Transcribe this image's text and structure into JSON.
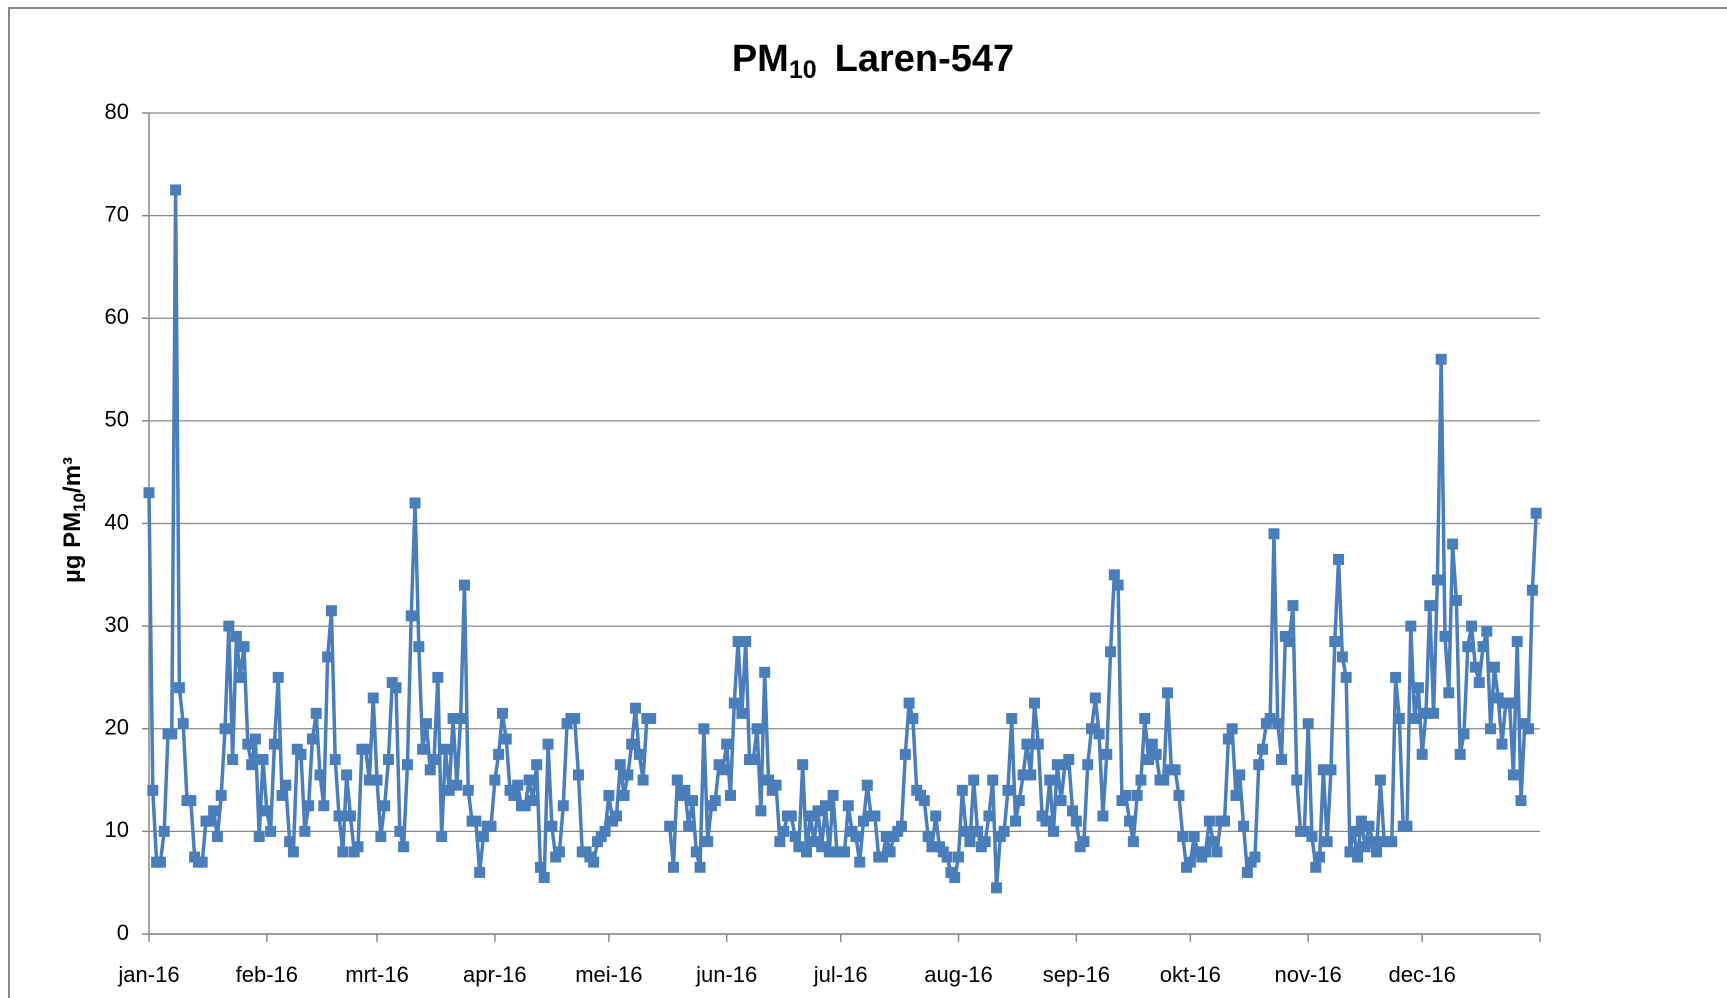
{
  "chart_data": {
    "type": "line",
    "title": [
      "PM",
      "10",
      "Laren-547"
    ],
    "y_label": [
      "µg PM",
      "10",
      "/m³"
    ],
    "color": "#4a7ebb",
    "grid": true,
    "ylim": [
      0,
      80
    ],
    "yticks": [
      0,
      10,
      20,
      30,
      40,
      50,
      60,
      70,
      80
    ],
    "categories": [
      "jan-16",
      null,
      null,
      null,
      null,
      null,
      null,
      null,
      null,
      null,
      null,
      null,
      null,
      null,
      null,
      null,
      null,
      null,
      null,
      null,
      null,
      null,
      null,
      null,
      null,
      null,
      null,
      null,
      null,
      null,
      null,
      "feb-16",
      null,
      null,
      null,
      null,
      null,
      null,
      null,
      null,
      null,
      null,
      null,
      null,
      null,
      null,
      null,
      null,
      null,
      null,
      null,
      null,
      null,
      null,
      null,
      null,
      null,
      null,
      null,
      null,
      "mrt-16",
      null,
      null,
      null,
      null,
      null,
      null,
      null,
      null,
      null,
      null,
      null,
      null,
      null,
      null,
      null,
      null,
      null,
      null,
      null,
      null,
      null,
      null,
      null,
      null,
      null,
      null,
      null,
      null,
      null,
      null,
      "apr-16",
      null,
      null,
      null,
      null,
      null,
      null,
      null,
      null,
      null,
      null,
      null,
      null,
      null,
      null,
      null,
      null,
      null,
      null,
      null,
      null,
      null,
      null,
      null,
      null,
      null,
      null,
      null,
      null,
      null,
      "mei-16",
      null,
      null,
      null,
      null,
      null,
      null,
      null,
      null,
      null,
      null,
      null,
      null,
      null,
      null,
      null,
      null,
      null,
      null,
      null,
      null,
      null,
      null,
      null,
      null,
      null,
      null,
      null,
      null,
      null,
      null,
      "jun-16",
      null,
      null,
      null,
      null,
      null,
      null,
      null,
      null,
      null,
      null,
      null,
      null,
      null,
      null,
      null,
      null,
      null,
      null,
      null,
      null,
      null,
      null,
      null,
      null,
      null,
      null,
      null,
      null,
      null,
      "jul-16",
      null,
      null,
      null,
      null,
      null,
      null,
      null,
      null,
      null,
      null,
      null,
      null,
      null,
      null,
      null,
      null,
      null,
      null,
      null,
      null,
      null,
      null,
      null,
      null,
      null,
      null,
      null,
      null,
      null,
      null,
      "aug-16",
      null,
      null,
      null,
      null,
      null,
      null,
      null,
      null,
      null,
      null,
      null,
      null,
      null,
      null,
      null,
      null,
      null,
      null,
      null,
      null,
      null,
      null,
      null,
      null,
      null,
      null,
      null,
      null,
      null,
      null,
      "sep-16",
      null,
      null,
      null,
      null,
      null,
      null,
      null,
      null,
      null,
      null,
      null,
      null,
      null,
      null,
      null,
      null,
      null,
      null,
      null,
      null,
      null,
      null,
      null,
      null,
      null,
      null,
      null,
      null,
      null,
      "okt-16",
      null,
      null,
      null,
      null,
      null,
      null,
      null,
      null,
      null,
      null,
      null,
      null,
      null,
      null,
      null,
      null,
      null,
      null,
      null,
      null,
      null,
      null,
      null,
      null,
      null,
      null,
      null,
      null,
      null,
      null,
      "nov-16",
      null,
      null,
      null,
      null,
      null,
      null,
      null,
      null,
      null,
      null,
      null,
      null,
      null,
      null,
      null,
      null,
      null,
      null,
      null,
      null,
      null,
      null,
      null,
      null,
      null,
      null,
      null,
      null,
      null,
      "dec-16",
      null,
      null,
      null,
      null,
      null,
      null,
      null,
      null,
      null,
      null,
      null,
      null,
      null,
      null,
      null,
      null,
      null,
      null,
      null,
      null,
      null,
      null,
      null,
      null,
      null,
      null,
      null,
      null,
      null,
      null
    ],
    "values": [
      43,
      14,
      7,
      7,
      10,
      19.5,
      19.5,
      72.5,
      24,
      20.5,
      13,
      13,
      7.5,
      7,
      7,
      11,
      11,
      12,
      9.5,
      13.5,
      20,
      30,
      17,
      29,
      25,
      28,
      18.5,
      16.5,
      19,
      9.5,
      17,
      12,
      10,
      18.5,
      25,
      13.5,
      14.5,
      9,
      8,
      18,
      17.5,
      10,
      12.5,
      19,
      21.5,
      15.5,
      12.5,
      27,
      31.5,
      17,
      11.5,
      8,
      15.5,
      11.5,
      8,
      8.5,
      18,
      18,
      15,
      23,
      15,
      9.5,
      12.5,
      17,
      24.5,
      24,
      10,
      8.5,
      16.5,
      31,
      42,
      28,
      18,
      20.5,
      16,
      17,
      25,
      9.5,
      18,
      14,
      21,
      14.5,
      21,
      34,
      14,
      11,
      11,
      6,
      9.5,
      10.5,
      10.5,
      15,
      17.5,
      21.5,
      19,
      14,
      13.5,
      14.5,
      12.5,
      12.5,
      15,
      13,
      16.5,
      6.5,
      5.5,
      18.5,
      10.5,
      7.5,
      8,
      12.5,
      20.5,
      21,
      21,
      15.5,
      8,
      8,
      7.5,
      7,
      9,
      9.5,
      10,
      13.5,
      11,
      11.5,
      16.5,
      13.5,
      15.5,
      18.5,
      22,
      17.5,
      15,
      21,
      21,
      null,
      null,
      null,
      null,
      10.5,
      6.5,
      15,
      13.5,
      14,
      10.5,
      13,
      8,
      6.5,
      20,
      9,
      12.5,
      13,
      16.5,
      16,
      18.5,
      13.5,
      22.5,
      28.5,
      21.5,
      28.5,
      17,
      17,
      20,
      12,
      25.5,
      15,
      14,
      14.5,
      9,
      10,
      11.5,
      11.5,
      9.5,
      8.5,
      16.5,
      8,
      11.5,
      9,
      12,
      8.5,
      12.5,
      8,
      13.5,
      8,
      8,
      8,
      12.5,
      10,
      9.5,
      7,
      11,
      14.5,
      11.5,
      11.5,
      7.5,
      7.5,
      9.5,
      8,
      9.5,
      10,
      10.5,
      17.5,
      22.5,
      21,
      14,
      13.5,
      13,
      9.5,
      8.5,
      11.5,
      8.5,
      8,
      7.5,
      6,
      5.5,
      7.5,
      14,
      10,
      9,
      15,
      10,
      8.5,
      9,
      11.5,
      15,
      4.5,
      9.5,
      10,
      14,
      21,
      11,
      13,
      15.5,
      18.5,
      15.5,
      22.5,
      18.5,
      11.5,
      11,
      15,
      10,
      16.5,
      13,
      16.5,
      17,
      12,
      11,
      8.5,
      9,
      16.5,
      20,
      23,
      19.5,
      11.5,
      17.5,
      27.5,
      35,
      34,
      13,
      13.5,
      11,
      9,
      13.5,
      15,
      21,
      17,
      18.5,
      17.5,
      15,
      15,
      23.5,
      16,
      16,
      13.5,
      9.5,
      6.5,
      7,
      9.5,
      8,
      7.5,
      8,
      11,
      9,
      8,
      11,
      11,
      19,
      20,
      13.5,
      15.5,
      10.5,
      6,
      7,
      7.5,
      16.5,
      18,
      20.5,
      21,
      39,
      20.5,
      17,
      29,
      28.5,
      32,
      15,
      10,
      10,
      20.5,
      9.5,
      6.5,
      7.5,
      16,
      9,
      16,
      28.5,
      36.5,
      27,
      25,
      8,
      10,
      7.5,
      11,
      8.5,
      10.5,
      9,
      8,
      15,
      9,
      9,
      9,
      25,
      21,
      10.5,
      10.5,
      30,
      21,
      24,
      17.5,
      21.5,
      32,
      21.5,
      34.5,
      56,
      29,
      23.5,
      38,
      32.5,
      17.5,
      19.5,
      28,
      30,
      26,
      24.5,
      28,
      29.5,
      20,
      26,
      23,
      18.5,
      22.5,
      22.5,
      15.5,
      28.5,
      13,
      20.5,
      20,
      33.5,
      41
    ]
  }
}
